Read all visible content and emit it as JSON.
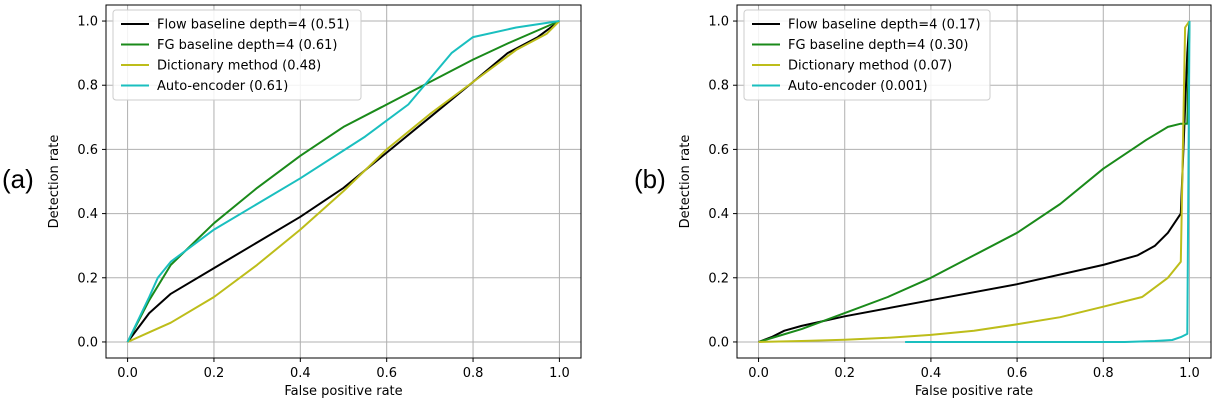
{
  "chart_data": [
    {
      "type": "line",
      "panel_label": "(a)",
      "xlabel": "False positive rate",
      "ylabel": "Detection rate",
      "xlim": [
        0.0,
        1.0
      ],
      "ylim": [
        0.0,
        1.0
      ],
      "xticks": [
        0.0,
        0.2,
        0.4,
        0.6,
        0.8,
        1.0
      ],
      "yticks": [
        0.0,
        0.2,
        0.4,
        0.6,
        0.8,
        1.0
      ],
      "xtick_labels": [
        "0.0",
        "0.2",
        "0.4",
        "0.6",
        "0.8",
        "1.0"
      ],
      "ytick_labels": [
        "0.0",
        "0.2",
        "0.4",
        "0.6",
        "0.8",
        "1.0"
      ],
      "grid": true,
      "legend_position": "top-left",
      "series": [
        {
          "name": "Flow baseline depth=4 (0.51)",
          "color": "#000000",
          "x": [
            0.0,
            0.05,
            0.1,
            0.2,
            0.3,
            0.4,
            0.5,
            0.6,
            0.7,
            0.8,
            0.88,
            0.95,
            1.0
          ],
          "y": [
            0.0,
            0.09,
            0.15,
            0.23,
            0.31,
            0.39,
            0.48,
            0.59,
            0.7,
            0.81,
            0.9,
            0.95,
            1.0
          ]
        },
        {
          "name": "FG baseline depth=4 (0.61)",
          "color": "#1a8a1a",
          "x": [
            0.0,
            0.05,
            0.1,
            0.2,
            0.3,
            0.4,
            0.5,
            0.6,
            0.7,
            0.8,
            0.88,
            1.0
          ],
          "y": [
            0.0,
            0.13,
            0.24,
            0.37,
            0.48,
            0.58,
            0.67,
            0.74,
            0.81,
            0.88,
            0.93,
            1.0
          ]
        },
        {
          "name": "Dictionary method (0.48)",
          "color": "#bdbd1a",
          "x": [
            0.0,
            0.05,
            0.1,
            0.2,
            0.3,
            0.4,
            0.5,
            0.6,
            0.7,
            0.8,
            0.9,
            0.97,
            1.0
          ],
          "y": [
            0.0,
            0.03,
            0.06,
            0.14,
            0.24,
            0.35,
            0.47,
            0.6,
            0.71,
            0.81,
            0.91,
            0.96,
            1.0
          ]
        },
        {
          "name": "Auto-encoder (0.61)",
          "color": "#1abfbf",
          "x": [
            0.0,
            0.05,
            0.07,
            0.1,
            0.2,
            0.3,
            0.4,
            0.55,
            0.65,
            0.75,
            0.8,
            0.9,
            1.0
          ],
          "y": [
            0.0,
            0.14,
            0.2,
            0.25,
            0.35,
            0.43,
            0.51,
            0.64,
            0.74,
            0.9,
            0.95,
            0.98,
            1.0
          ]
        }
      ]
    },
    {
      "type": "line",
      "panel_label": "(b)",
      "xlabel": "False positive rate",
      "ylabel": "Detection rate",
      "xlim": [
        0.0,
        1.0
      ],
      "ylim": [
        0.0,
        1.0
      ],
      "xticks": [
        0.0,
        0.2,
        0.4,
        0.6,
        0.8,
        1.0
      ],
      "yticks": [
        0.0,
        0.2,
        0.4,
        0.6,
        0.8,
        1.0
      ],
      "xtick_labels": [
        "0.0",
        "0.2",
        "0.4",
        "0.6",
        "0.8",
        "1.0"
      ],
      "ytick_labels": [
        "0.0",
        "0.2",
        "0.4",
        "0.6",
        "0.8",
        "1.0"
      ],
      "grid": true,
      "legend_position": "top-left",
      "series": [
        {
          "name": "Flow baseline depth=4 (0.17)",
          "color": "#000000",
          "x": [
            0.0,
            0.03,
            0.06,
            0.1,
            0.2,
            0.4,
            0.6,
            0.8,
            0.88,
            0.92,
            0.95,
            0.98,
            0.995,
            1.0
          ],
          "y": [
            0.0,
            0.015,
            0.035,
            0.05,
            0.08,
            0.13,
            0.18,
            0.24,
            0.27,
            0.3,
            0.34,
            0.4,
            0.9,
            1.0
          ]
        },
        {
          "name": "FG baseline depth=4 (0.30)",
          "color": "#1a8a1a",
          "x": [
            0.0,
            0.05,
            0.1,
            0.2,
            0.3,
            0.4,
            0.5,
            0.6,
            0.7,
            0.8,
            0.9,
            0.95,
            0.98,
            0.995,
            1.0
          ],
          "y": [
            0.0,
            0.02,
            0.04,
            0.09,
            0.14,
            0.2,
            0.27,
            0.34,
            0.43,
            0.54,
            0.63,
            0.67,
            0.68,
            0.68,
            1.0
          ]
        },
        {
          "name": "Dictionary method (0.07)",
          "color": "#bdbd1a",
          "x": [
            0.0,
            0.1,
            0.2,
            0.3,
            0.4,
            0.5,
            0.6,
            0.7,
            0.8,
            0.89,
            0.95,
            0.98,
            0.99,
            1.0
          ],
          "y": [
            0.0,
            0.003,
            0.007,
            0.013,
            0.022,
            0.035,
            0.055,
            0.077,
            0.11,
            0.14,
            0.2,
            0.25,
            0.98,
            1.0
          ]
        },
        {
          "name": "Auto-encoder (0.001)",
          "color": "#1abfbf",
          "x": [
            0.34,
            0.5,
            0.7,
            0.85,
            0.92,
            0.96,
            0.98,
            0.995,
            1.0
          ],
          "y": [
            0.0,
            0.0,
            0.0,
            0.0,
            0.003,
            0.006,
            0.015,
            0.025,
            1.0
          ]
        }
      ]
    }
  ]
}
